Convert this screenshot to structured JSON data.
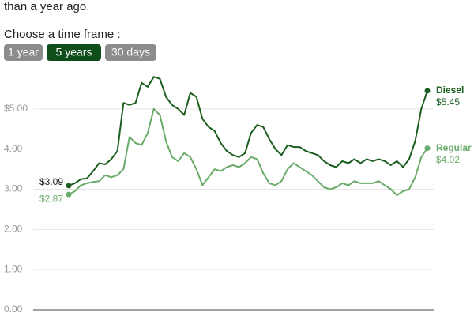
{
  "header": {
    "intro": "than a year ago.",
    "prompt": "Choose a time frame :",
    "buttons": [
      "1 year",
      "5 years",
      "30 days"
    ],
    "selected": 1
  },
  "chart_data": {
    "type": "line",
    "ylim": [
      0,
      6
    ],
    "yticks": [
      {
        "value": 0,
        "label": "0.00"
      },
      {
        "value": 1,
        "label": "1.00"
      },
      {
        "value": 2,
        "label": "2.00"
      },
      {
        "value": 3,
        "label": "3.00"
      },
      {
        "value": 4,
        "label": "4.00"
      },
      {
        "value": 5,
        "label": "$5.00"
      }
    ],
    "grid": true,
    "series": [
      {
        "name": "Diesel",
        "color": "#1b5e20",
        "values": [
          3.09,
          3.15,
          3.25,
          3.27,
          3.45,
          3.65,
          3.62,
          3.75,
          3.95,
          5.15,
          5.1,
          5.15,
          5.65,
          5.55,
          5.8,
          5.75,
          5.3,
          5.1,
          5.0,
          4.85,
          5.4,
          5.3,
          4.75,
          4.55,
          4.45,
          4.15,
          3.95,
          3.85,
          3.8,
          3.9,
          4.4,
          4.6,
          4.55,
          4.25,
          4.0,
          3.85,
          4.1,
          4.05,
          4.05,
          3.95,
          3.9,
          3.85,
          3.7,
          3.6,
          3.55,
          3.7,
          3.65,
          3.75,
          3.65,
          3.75,
          3.7,
          3.75,
          3.7,
          3.6,
          3.7,
          3.55,
          3.75,
          4.2,
          5.0,
          5.45
        ],
        "value_labels": {
          "first": "$3.09",
          "last": "$5.45"
        }
      },
      {
        "name": "Regular",
        "color": "#6aab6a",
        "values": [
          2.87,
          2.95,
          3.1,
          3.15,
          3.18,
          3.2,
          3.35,
          3.3,
          3.35,
          3.5,
          4.3,
          4.15,
          4.1,
          4.4,
          5.0,
          4.85,
          4.2,
          3.8,
          3.7,
          3.9,
          3.8,
          3.5,
          3.1,
          3.3,
          3.5,
          3.45,
          3.55,
          3.6,
          3.55,
          3.65,
          3.8,
          3.75,
          3.4,
          3.15,
          3.1,
          3.2,
          3.5,
          3.65,
          3.55,
          3.45,
          3.35,
          3.2,
          3.05,
          3.0,
          3.05,
          3.15,
          3.1,
          3.2,
          3.15,
          3.15,
          3.15,
          3.2,
          3.1,
          3.0,
          2.85,
          2.95,
          3.0,
          3.3,
          3.8,
          4.02
        ],
        "value_labels": {
          "first": "$2.87",
          "last": "$4.02"
        }
      }
    ]
  }
}
